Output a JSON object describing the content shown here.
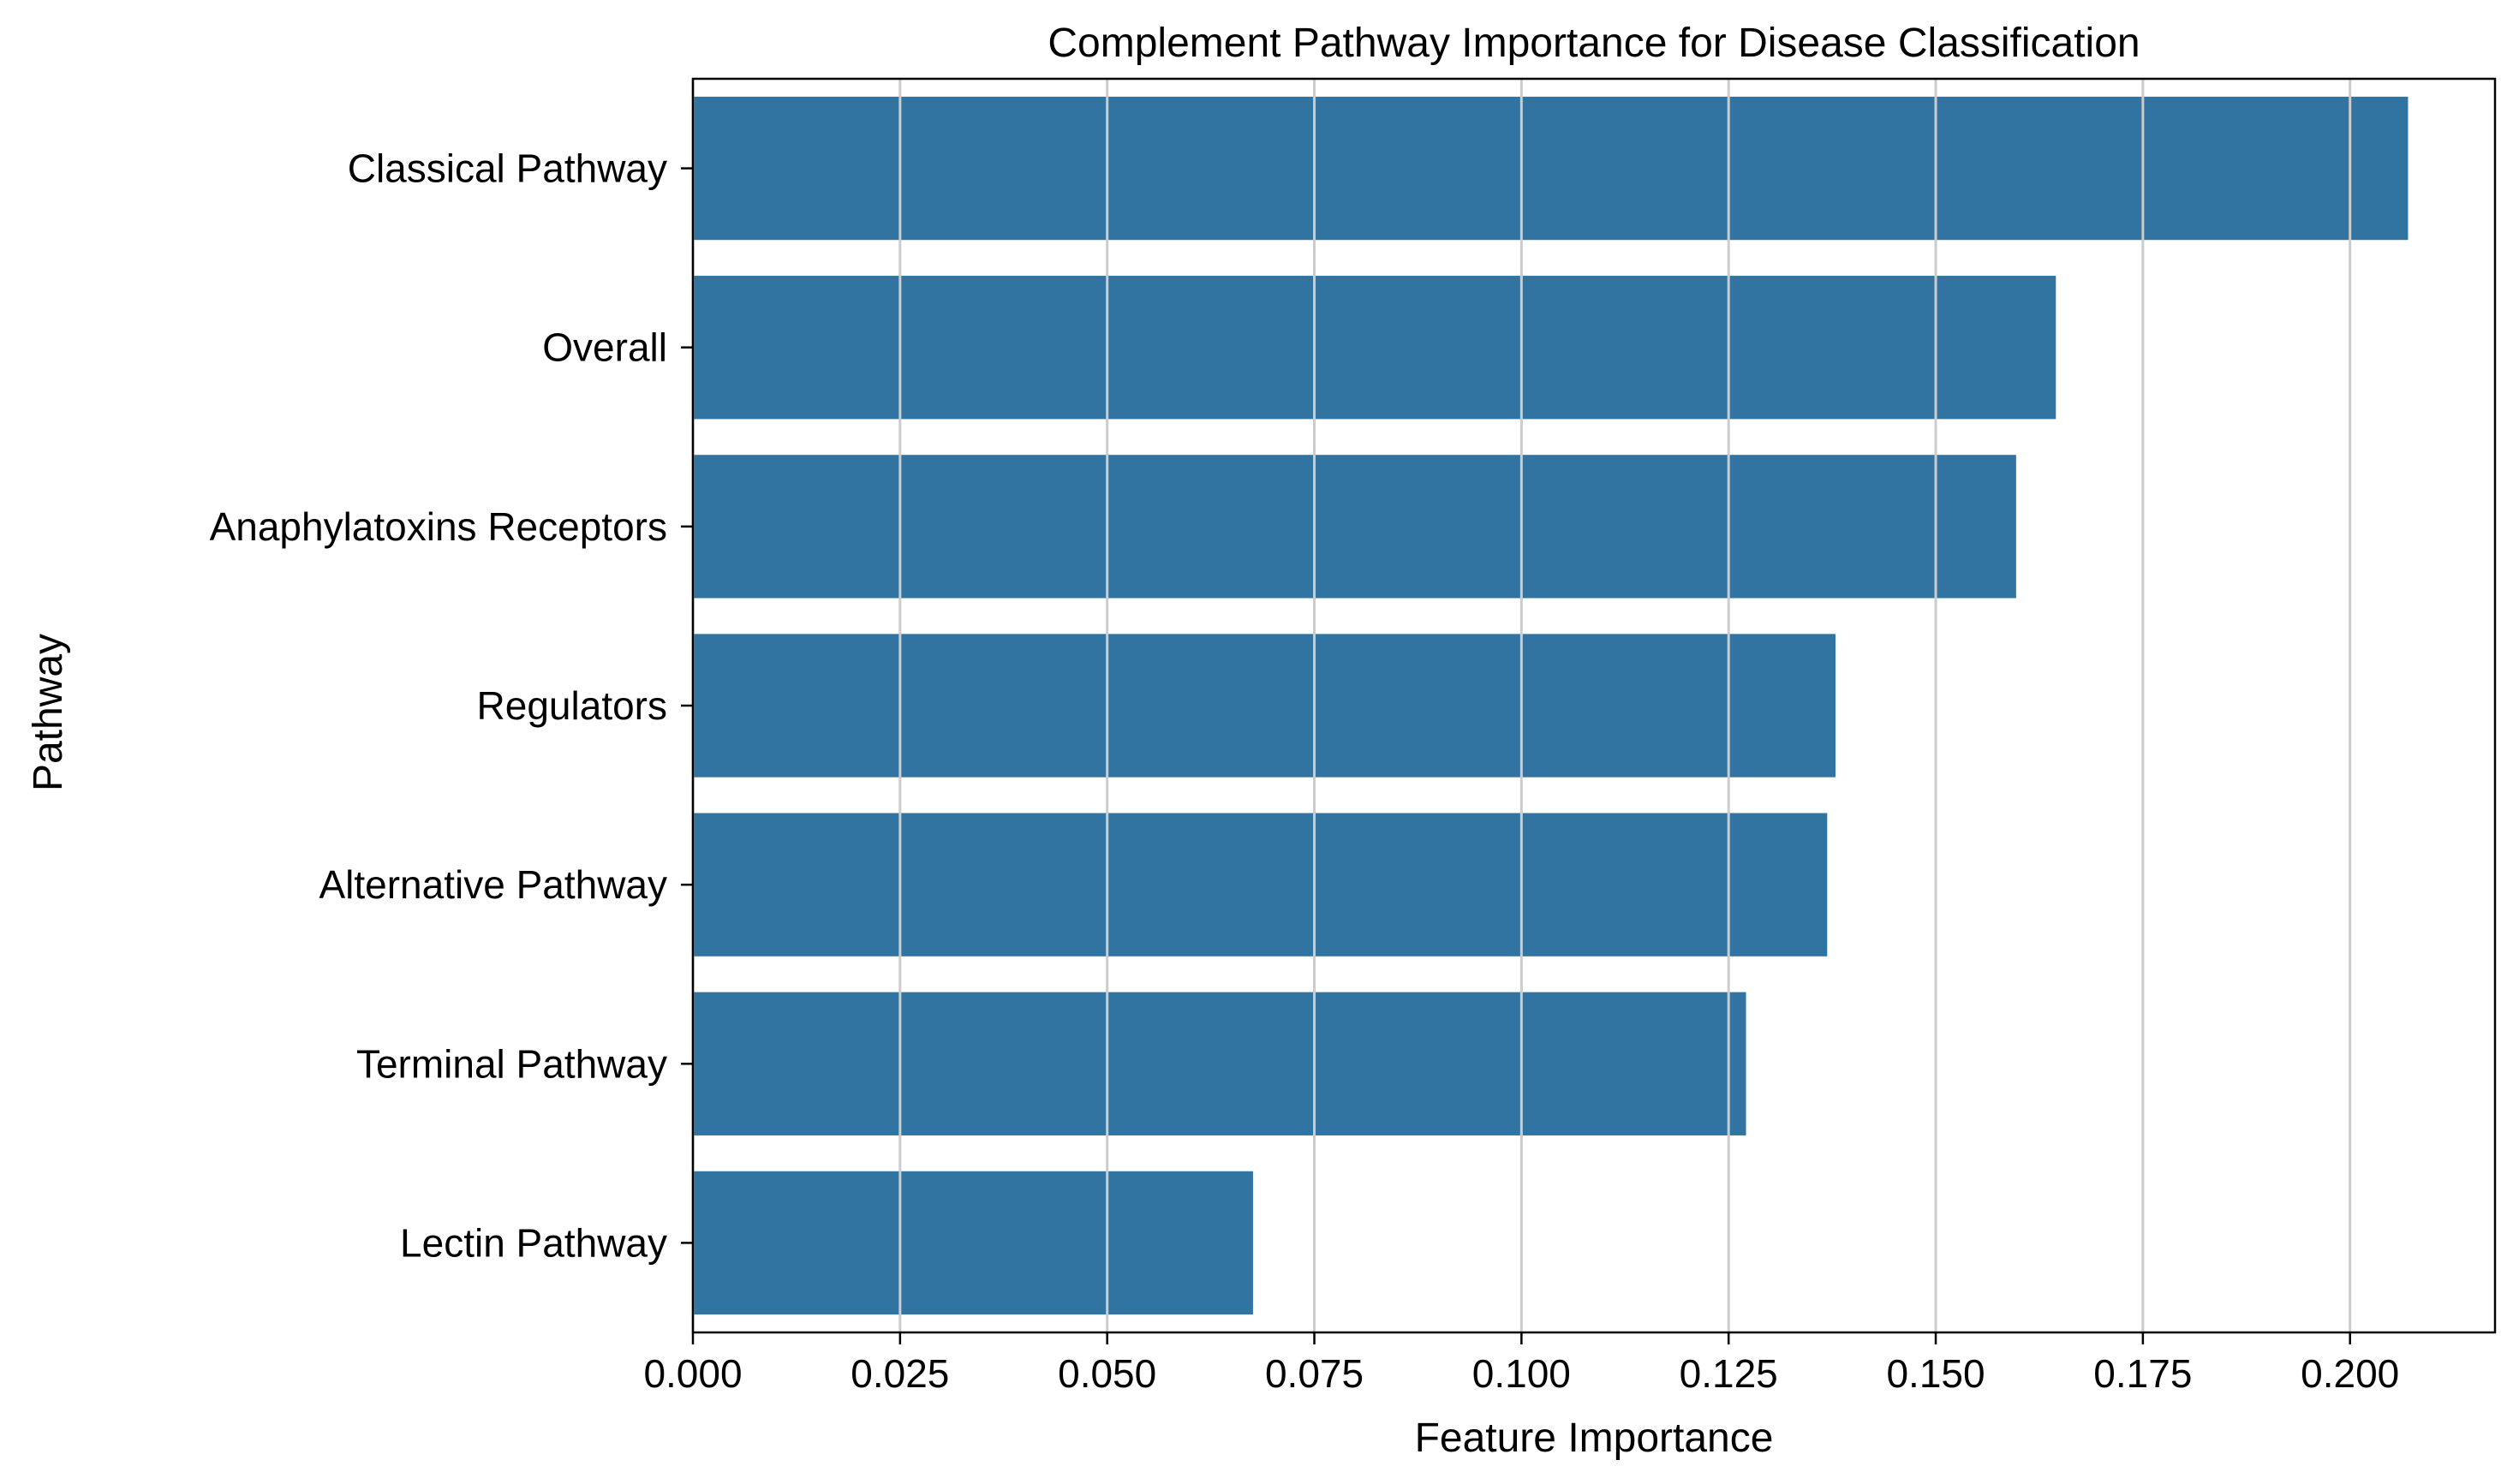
{
  "chart_data": {
    "type": "bar",
    "orientation": "horizontal",
    "title": "Complement Pathway Importance for Disease Classification",
    "xlabel": "Feature Importance",
    "ylabel": "Pathway",
    "categories": [
      "Classical Pathway",
      "Overall",
      "Anaphylatoxins Receptors",
      "Regulators",
      "Alternative Pathway",
      "Terminal Pathway",
      "Lectin Pathway"
    ],
    "values": [
      0.207,
      0.1645,
      0.1597,
      0.1379,
      0.1369,
      0.1271,
      0.0676
    ],
    "xlim": [
      0,
      0.2175
    ],
    "xticks": [
      "0.000",
      "0.025",
      "0.050",
      "0.075",
      "0.100",
      "0.125",
      "0.150",
      "0.175",
      "0.200"
    ],
    "grid": "vertical",
    "bar_color": "#3274a1"
  }
}
